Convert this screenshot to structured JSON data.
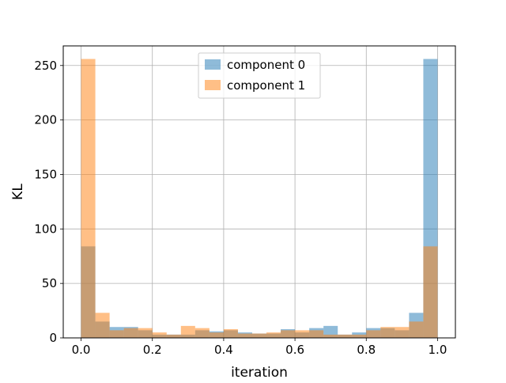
{
  "chart_data": {
    "type": "histogram",
    "xlabel": "iteration",
    "ylabel": "KL",
    "xlim": [
      -0.05,
      1.05
    ],
    "ylim": [
      0,
      268
    ],
    "xticks": [
      0.0,
      0.2,
      0.4,
      0.6,
      0.8,
      1.0
    ],
    "xtick_labels": [
      "0.0",
      "0.2",
      "0.4",
      "0.6",
      "0.8",
      "1.0"
    ],
    "yticks": [
      0,
      50,
      100,
      150,
      200,
      250
    ],
    "ytick_labels": [
      "0",
      "50",
      "100",
      "150",
      "200",
      "250"
    ],
    "grid": true,
    "legend_position": "upper center",
    "bin_edges": [
      0.0,
      0.04,
      0.08,
      0.12,
      0.16,
      0.2,
      0.24,
      0.28,
      0.32,
      0.36,
      0.4,
      0.44,
      0.48,
      0.52,
      0.56,
      0.6,
      0.64,
      0.68,
      0.72,
      0.76,
      0.8,
      0.84,
      0.88,
      0.92,
      0.96,
      1.0
    ],
    "series": [
      {
        "name": "component 0",
        "color": "#1f77b4",
        "opacity": 0.5,
        "counts": [
          84,
          15,
          10,
          10,
          7,
          3,
          3,
          3,
          7,
          6,
          7,
          5,
          4,
          4,
          8,
          5,
          9,
          11,
          3,
          5,
          9,
          9,
          7,
          23,
          256
        ]
      },
      {
        "name": "component 1",
        "color": "#ff7f0e",
        "opacity": 0.5,
        "counts": [
          256,
          23,
          7,
          9,
          9,
          5,
          3,
          11,
          9,
          5,
          8,
          4,
          4,
          5,
          7,
          7,
          7,
          3,
          3,
          3,
          7,
          10,
          10,
          15,
          84
        ]
      }
    ]
  }
}
